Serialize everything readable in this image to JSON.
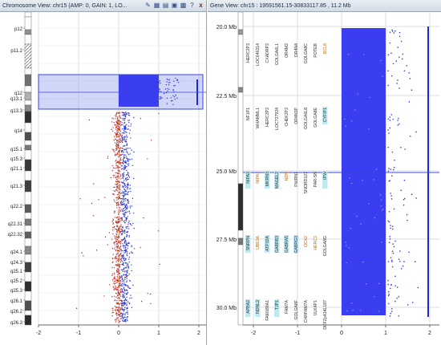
{
  "left_panel": {
    "title": "Chromosome View: chr15 (AMP: 0, GAIN: 1, LO...",
    "close_label": "x",
    "bands": [
      "p12",
      "p11.2",
      "q12",
      "q13.1",
      "q13.3",
      "q14",
      "q15.1",
      "q15.3",
      "q21.1",
      "q21.3",
      "q22.2",
      "q22.31",
      "q22.32",
      "q24.1",
      "q24.3",
      "q25.1",
      "q25.2",
      "q25.3",
      "q26.1",
      "q26.2",
      "q26.3"
    ],
    "x_ticks": [
      "-2",
      "-1",
      "0",
      "1",
      "2"
    ]
  },
  "right_panel": {
    "title": "Gene View: chr15 : 19591561.15-30833117.85 , 11.2 Mb",
    "y_ticks": [
      "20.0 Mb",
      "22.5 Mb",
      "25.0 Mb",
      "27.5 Mb",
      "30.0 Mb"
    ],
    "x_ticks": [
      "-2",
      "-1",
      "0",
      "1",
      "2"
    ],
    "genes": [
      "HERC2P3",
      "LOC646214",
      "CXADRP2",
      "GOLGA6L1",
      "OR4M2",
      "OR4N4",
      "GOLGA8C",
      "POTEB",
      "BCL8",
      "NF1P1",
      "WHAMML1",
      "HERC2P2",
      "LOC727924",
      "CHEK2P2",
      "OR4N3P",
      "GOLGA6L8",
      "GOLGA8E",
      "CYFIP1",
      "NIPA2",
      "NIPA1",
      "MKRN3",
      "MAGEL2",
      "NDN",
      "PWRN1",
      "SNORD107",
      "PAR-SN",
      "IPW",
      "SNRPN",
      "UBE3A",
      "ATP10A",
      "GABRB3",
      "GABRA5",
      "GABRG3",
      "OCA2",
      "HERC2",
      "GOLGA8G",
      "APBA2",
      "NDNL2",
      "FAM189A1",
      "TJP1",
      "FAM7A",
      "GOLGA8F",
      "CHRFAM7A",
      "ULK4P1",
      "DKFZp434L187"
    ]
  }
}
